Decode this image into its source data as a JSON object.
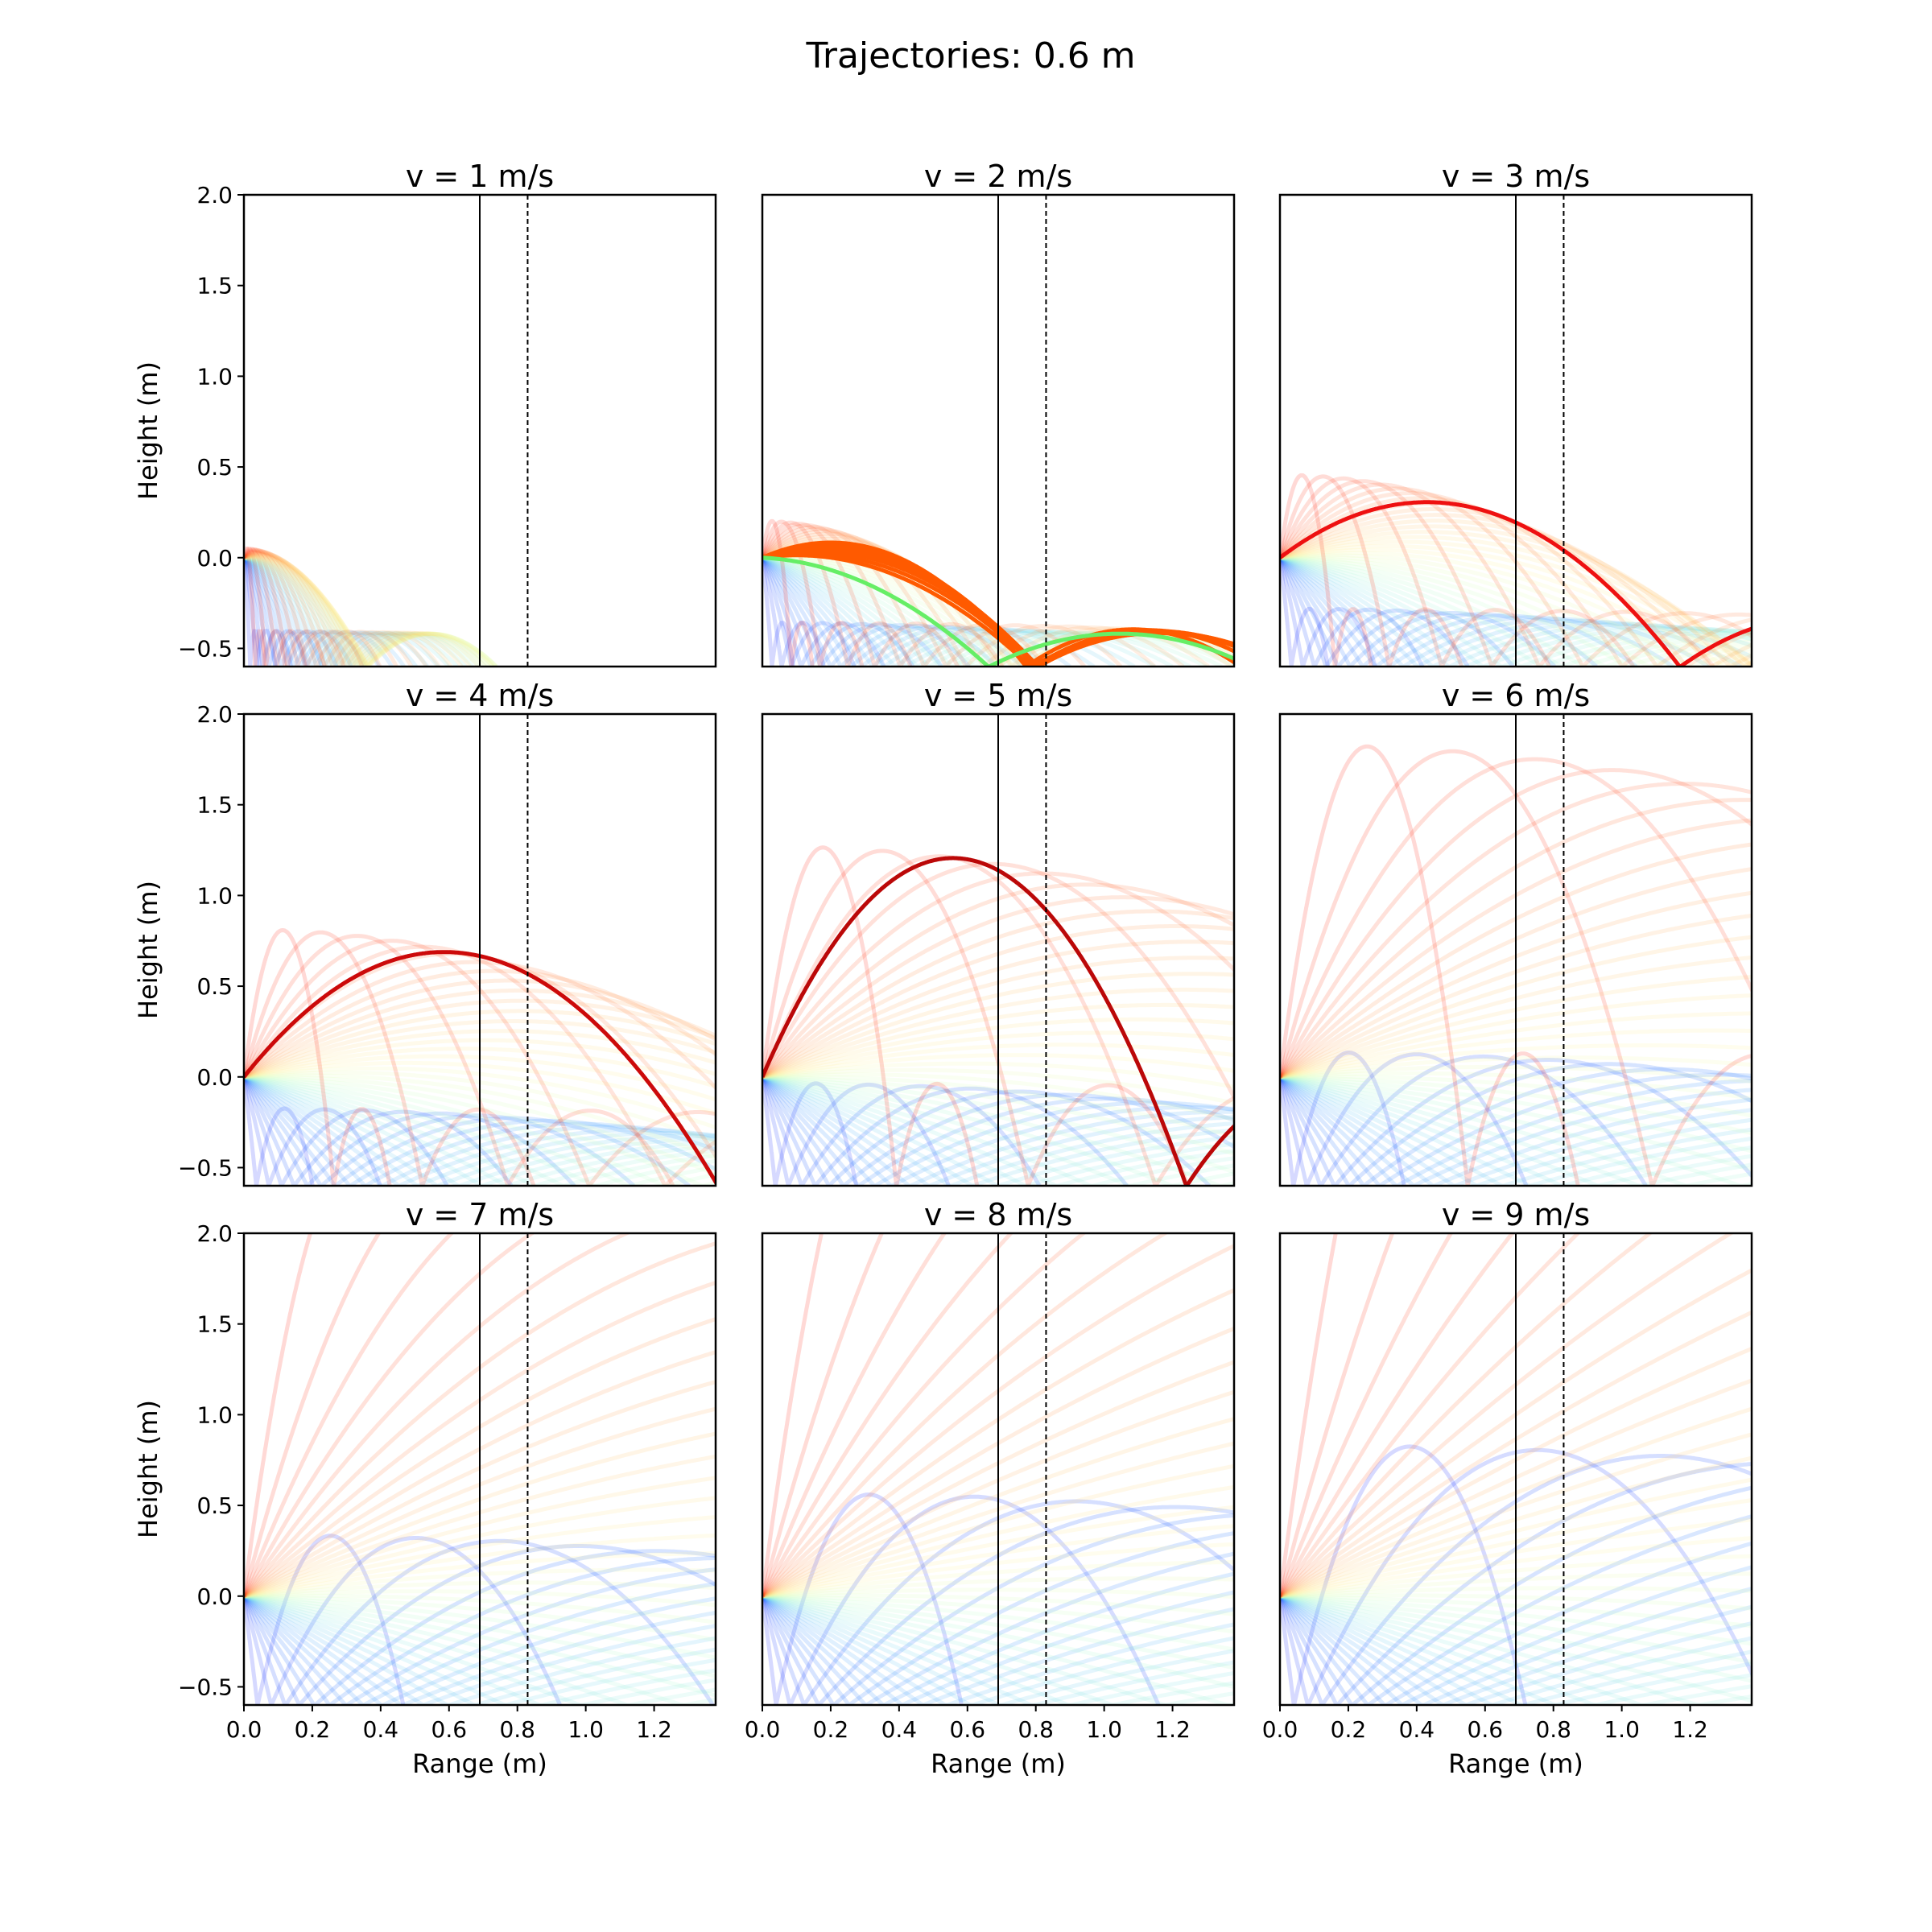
{
  "figure": {
    "title": "Trajectories: 0.6 m",
    "xlabel": "Range (m)",
    "ylabel": "Height (m)"
  },
  "chart_data": {
    "type": "line",
    "title": "Trajectories: 0.6 m",
    "layout": "3x3 grid of subplots sharing axes",
    "xlim": [
      0,
      1.38
    ],
    "ylim": [
      -0.6,
      2.0
    ],
    "xticks": [
      "0.0",
      "0.2",
      "0.4",
      "0.6",
      "0.8",
      "1.0",
      "1.2"
    ],
    "yticks": [
      "−0.5",
      "0.0",
      "0.5",
      "1.0",
      "1.5",
      "2.0"
    ],
    "grid": false,
    "reference_lines": [
      {
        "x": 0.69,
        "style": "solid",
        "color": "#000000"
      },
      {
        "x": 0.83,
        "style": "dashed",
        "color": "#000000"
      }
    ],
    "launch_angles_note": "fan of launch angles from -90 to 90 deg, colored by angle with a rainbow colormap",
    "bounce_floor": -0.6,
    "panels": [
      {
        "title": "v = 1 m/s",
        "v": 1,
        "highlight": []
      },
      {
        "title": "v = 2 m/s",
        "v": 2,
        "highlight": [
          {
            "angle": 15,
            "color": "#ff5a00"
          },
          {
            "angle": 20,
            "color": "#ff5a00"
          },
          {
            "angle": 25,
            "color": "#ff5a00"
          },
          {
            "angle": 30,
            "color": "#ff5a00"
          },
          {
            "angle": 35,
            "color": "#ff5a00"
          },
          {
            "angle": 40,
            "color": "#ff5a00"
          },
          {
            "angle": -5,
            "color": "#66ee66"
          }
        ]
      },
      {
        "title": "v = 3 m/s",
        "v": 3,
        "highlight": [
          {
            "angle": 55,
            "color": "#ee1111"
          }
        ]
      },
      {
        "title": "v = 4 m/s",
        "v": 4,
        "highlight": [
          {
            "angle": 67,
            "color": "#cc0a0a"
          }
        ]
      },
      {
        "title": "v = 5 m/s",
        "v": 5,
        "highlight": [
          {
            "angle": 77,
            "color": "#bb0808"
          }
        ]
      },
      {
        "title": "v = 6 m/s",
        "v": 6,
        "highlight": []
      },
      {
        "title": "v = 7 m/s",
        "v": 7,
        "highlight": []
      },
      {
        "title": "v = 8 m/s",
        "v": 8,
        "highlight": []
      },
      {
        "title": "v = 9 m/s",
        "v": 9,
        "highlight": []
      }
    ]
  }
}
